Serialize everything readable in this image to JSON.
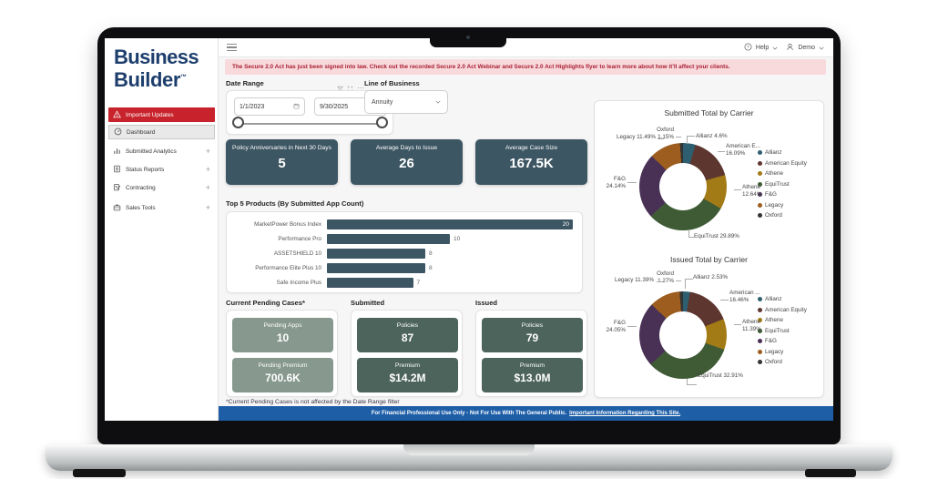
{
  "window": {
    "help_label": "Help",
    "user_label": "Demo"
  },
  "sidebar": {
    "logo_line1": "Business",
    "logo_line2": "Builder",
    "logo_tm": "™",
    "items": [
      {
        "label": "Important Updates"
      },
      {
        "label": "Dashboard"
      },
      {
        "label": "Submitted Analytics",
        "expand": "+"
      },
      {
        "label": "Status Reports",
        "expand": "+"
      },
      {
        "label": "Contracting",
        "expand": "+"
      },
      {
        "label": "Sales Tools",
        "expand": "+"
      }
    ]
  },
  "banner": {
    "text": "The Secure 2.0 Act has just been signed into law. Check out the recorded Secure 2.0 Act Webinar and Secure 2.0 Act Highlights flyer to learn more about how it'll affect your clients."
  },
  "filters": {
    "date_range_label": "Date Range",
    "date_start": "1/1/2023",
    "date_end": "9/30/2025",
    "line_of_business_label": "Line of Business",
    "line_of_business_value": "Annuity"
  },
  "kpis": [
    {
      "label": "Policy Anniversaries in Next 30 Days",
      "value": "5"
    },
    {
      "label": "Average Days to Issue",
      "value": "26"
    },
    {
      "label": "Average Case Size",
      "value": "167.5K"
    }
  ],
  "summary": {
    "sections": [
      {
        "title": "Current Pending Cases*",
        "tiles": [
          {
            "label": "Pending Apps",
            "value": "10"
          },
          {
            "label": "Pending Premium",
            "value": "700.6K"
          }
        ]
      },
      {
        "title": "Submitted",
        "tiles": [
          {
            "label": "Policies",
            "value": "87"
          },
          {
            "label": "Premium",
            "value": "$14.2M"
          }
        ]
      },
      {
        "title": "Issued",
        "tiles": [
          {
            "label": "Policies",
            "value": "79"
          },
          {
            "label": "Premium",
            "value": "$13.0M"
          }
        ]
      }
    ]
  },
  "footnote": "*Current Pending Cases is not affected by the Date Range filter",
  "footer": {
    "text": "For Financial Professional Use Only - Not For Use With The General Public.",
    "link": "Important Information Regarding This Site."
  },
  "colors": {
    "brand_navy": "#1d3e6d",
    "alert_red": "#c8232c",
    "banner_bg": "#f8dadd",
    "banner_text": "#a81e30",
    "kpi_bg": "#3d5663",
    "tile_light": "#87988f",
    "tile_dark": "#4d645d",
    "footer_blue": "#1e5ea7"
  },
  "chart_data": [
    {
      "type": "bar",
      "orientation": "horizontal",
      "title": "Top 5 Products (By Submitted App Count)",
      "categories": [
        "MarketPower Bonus Index",
        "Performance Pro",
        "ASSETSHIELD 10",
        "Performance Elite Plus 10",
        "Safe Income Plus"
      ],
      "values": [
        20,
        10,
        8,
        8,
        7
      ],
      "xlim": [
        0,
        20
      ],
      "bar_color": "#3d5663",
      "grid": false
    },
    {
      "type": "pie",
      "donut": true,
      "title": "Submitted Total by Carrier",
      "legend_position": "right",
      "categories": [
        "Allianz",
        "American Equity",
        "Athene",
        "EquiTrust",
        "F&G",
        "Legacy",
        "Oxford"
      ],
      "values": [
        4.6,
        16.09,
        12.64,
        29.89,
        24.14,
        11.49,
        1.15
      ],
      "colors": [
        "#2e5f70",
        "#5d362f",
        "#a37b16",
        "#3f5b35",
        "#493156",
        "#9c5d1f",
        "#333333"
      ],
      "callouts": [
        "Allianz 4.6%",
        "American E...\n16.09%",
        "Athene\n12.64%",
        "EquiTrust 29.89%",
        "F&G\n24.14%",
        "Legacy 11.49%",
        "Oxford\n1.15%"
      ]
    },
    {
      "type": "pie",
      "donut": true,
      "title": "Issued Total by Carrier",
      "legend_position": "right",
      "categories": [
        "Allianz",
        "American Equity",
        "Athene",
        "EquiTrust",
        "F&G",
        "Legacy",
        "Oxford"
      ],
      "values": [
        2.53,
        16.46,
        11.39,
        32.91,
        24.05,
        11.39,
        1.27
      ],
      "colors": [
        "#2e5f70",
        "#5d362f",
        "#a37b16",
        "#3f5b35",
        "#493156",
        "#9c5d1f",
        "#333333"
      ],
      "callouts": [
        "Allianz 2.53%",
        "American ...\n16.46%",
        "Athene\n11.39%",
        "EquiTrust 32.91%",
        "F&G\n24.05%",
        "Legacy 11.39%",
        "Oxford\n1.27%"
      ]
    }
  ]
}
